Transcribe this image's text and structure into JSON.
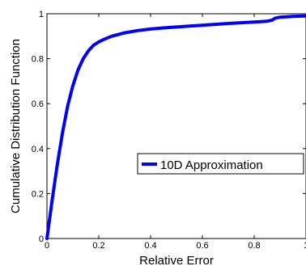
{
  "chart_data": {
    "type": "line",
    "title": "",
    "xlabel": "Relative Error",
    "ylabel": "Cumulative Distribution Function",
    "xlim": [
      0,
      1
    ],
    "ylim": [
      0,
      1
    ],
    "x_ticks": [
      0,
      0.2,
      0.4,
      0.6,
      0.8,
      1
    ],
    "x_tick_labels": [
      "0",
      "0.2",
      "0.4",
      "0.6",
      "0.8",
      "1"
    ],
    "y_ticks": [
      0,
      0.2,
      0.4,
      0.6,
      0.8,
      1
    ],
    "y_tick_labels": [
      "0",
      "0.2",
      "0.4",
      "0.6",
      "0.8",
      "1"
    ],
    "grid": false,
    "legend_position": "center-right",
    "series": [
      {
        "name": "10D Approximation",
        "color": "#0000ff",
        "x": [
          0,
          0.02,
          0.04,
          0.06,
          0.08,
          0.1,
          0.12,
          0.14,
          0.16,
          0.18,
          0.2,
          0.22,
          0.25,
          0.3,
          0.35,
          0.4,
          0.45,
          0.5,
          0.55,
          0.6,
          0.65,
          0.7,
          0.75,
          0.8,
          0.85,
          0.87,
          0.88,
          0.9,
          0.95,
          1.0
        ],
        "y": [
          0,
          0.17,
          0.33,
          0.47,
          0.59,
          0.68,
          0.75,
          0.8,
          0.835,
          0.86,
          0.875,
          0.886,
          0.9,
          0.915,
          0.925,
          0.932,
          0.937,
          0.941,
          0.945,
          0.949,
          0.953,
          0.957,
          0.96,
          0.963,
          0.967,
          0.972,
          0.98,
          0.985,
          0.988,
          0.99
        ]
      }
    ]
  }
}
